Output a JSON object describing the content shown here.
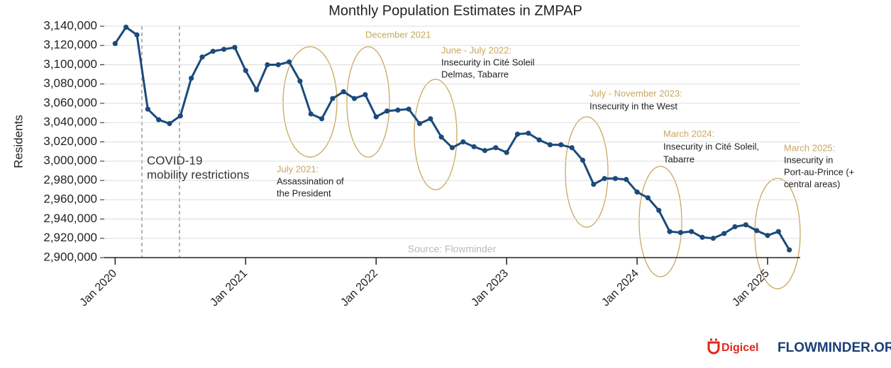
{
  "chart_data": {
    "type": "line",
    "title": "Monthly Population Estimates in  ZMPAP",
    "y_label": "Residents",
    "source": "Source: Flowminder",
    "x": [
      "2020-01",
      "2020-02",
      "2020-03",
      "2020-04",
      "2020-05",
      "2020-06",
      "2020-07",
      "2020-08",
      "2020-09",
      "2020-10",
      "2020-11",
      "2020-12",
      "2021-01",
      "2021-02",
      "2021-03",
      "2021-04",
      "2021-05",
      "2021-06",
      "2021-07",
      "2021-08",
      "2021-09",
      "2021-10",
      "2021-11",
      "2021-12",
      "2022-01",
      "2022-02",
      "2022-03",
      "2022-04",
      "2022-05",
      "2022-06",
      "2022-07",
      "2022-08",
      "2022-09",
      "2022-10",
      "2022-11",
      "2022-12",
      "2023-01",
      "2023-02",
      "2023-03",
      "2023-04",
      "2023-05",
      "2023-06",
      "2023-07",
      "2023-08",
      "2023-09",
      "2023-10",
      "2023-11",
      "2023-12",
      "2024-01",
      "2024-02",
      "2024-03",
      "2024-04",
      "2024-05",
      "2024-06",
      "2024-07",
      "2024-08",
      "2024-09",
      "2024-10",
      "2024-11",
      "2024-12",
      "2025-01",
      "2025-02",
      "2025-03"
    ],
    "series": [
      {
        "name": "Residents",
        "color": "#1b4a7c",
        "values": [
          3122000,
          3139000,
          3131000,
          3054000,
          3043000,
          3039000,
          3047000,
          3086000,
          3108000,
          3114000,
          3116000,
          3118000,
          3094000,
          3074000,
          3100000,
          3100000,
          3103000,
          3083000,
          3049000,
          3044000,
          3065000,
          3072000,
          3065000,
          3069000,
          3046000,
          3052000,
          3053000,
          3054000,
          3039000,
          3044000,
          3025000,
          3014000,
          3020000,
          3015000,
          3011000,
          3014000,
          3009000,
          3028000,
          3029000,
          3022000,
          3017000,
          3017000,
          3014000,
          3001000,
          2976000,
          2982000,
          2982000,
          2981000,
          2968000,
          2962000,
          2949000,
          2927000,
          2926000,
          2927000,
          2921000,
          2920000,
          2925000,
          2932000,
          2934000,
          2928000,
          2923000,
          2927000,
          2908000
        ]
      }
    ],
    "xlim": [
      "2019-12",
      "2025-04"
    ],
    "xticks": [
      {
        "value": "2020-01",
        "label": "Jan 2020"
      },
      {
        "value": "2021-01",
        "label": "Jan 2021"
      },
      {
        "value": "2022-01",
        "label": "Jan 2022"
      },
      {
        "value": "2023-01",
        "label": "Jan 2023"
      },
      {
        "value": "2024-01",
        "label": "Jan 2024"
      },
      {
        "value": "2025-01",
        "label": "Jan 2025"
      }
    ],
    "ylim": [
      2900000,
      3140000
    ],
    "yticks": [
      {
        "value": 2900000,
        "label": "2,900,000"
      },
      {
        "value": 2920000,
        "label": "2,920,000"
      },
      {
        "value": 2940000,
        "label": "2,940,000"
      },
      {
        "value": 2960000,
        "label": "2,960,000"
      },
      {
        "value": 2980000,
        "label": "2,980,000"
      },
      {
        "value": 3000000,
        "label": "3,000,000"
      },
      {
        "value": 3020000,
        "label": "3,020,000"
      },
      {
        "value": 3040000,
        "label": "3,040,000"
      },
      {
        "value": 3060000,
        "label": "3,060,000"
      },
      {
        "value": 3080000,
        "label": "3,080,000"
      },
      {
        "value": 3100000,
        "label": "3,100,000"
      },
      {
        "value": 3120000,
        "label": "3,120,000"
      },
      {
        "value": 3140000,
        "label": "3,140,000"
      }
    ],
    "grid": true,
    "annotations": [
      {
        "text": [
          "COVID-19",
          "mobility restrictions"
        ]
      },
      {
        "title": "July 2021:",
        "text": [
          "Assassination of",
          "the President"
        ]
      },
      {
        "title": "December 2021"
      },
      {
        "title": "June - July 2022:",
        "text": [
          "Insecurity in Cité Soleil",
          "Delmas, Tabarre"
        ]
      },
      {
        "title": "July - November 2023:",
        "text": [
          "Insecurity in the West"
        ]
      },
      {
        "title": "March 2024:",
        "text": [
          "Insecurity in Cité Soleil,",
          "Tabarre"
        ]
      },
      {
        "title": "March 2025:",
        "text": [
          "Insecurity in",
          "Port-au-Prince (+",
          "central areas)"
        ]
      }
    ]
  },
  "footer": {
    "digicel": "Digicel",
    "flowminder": "FLOWMINDER.ORG"
  }
}
